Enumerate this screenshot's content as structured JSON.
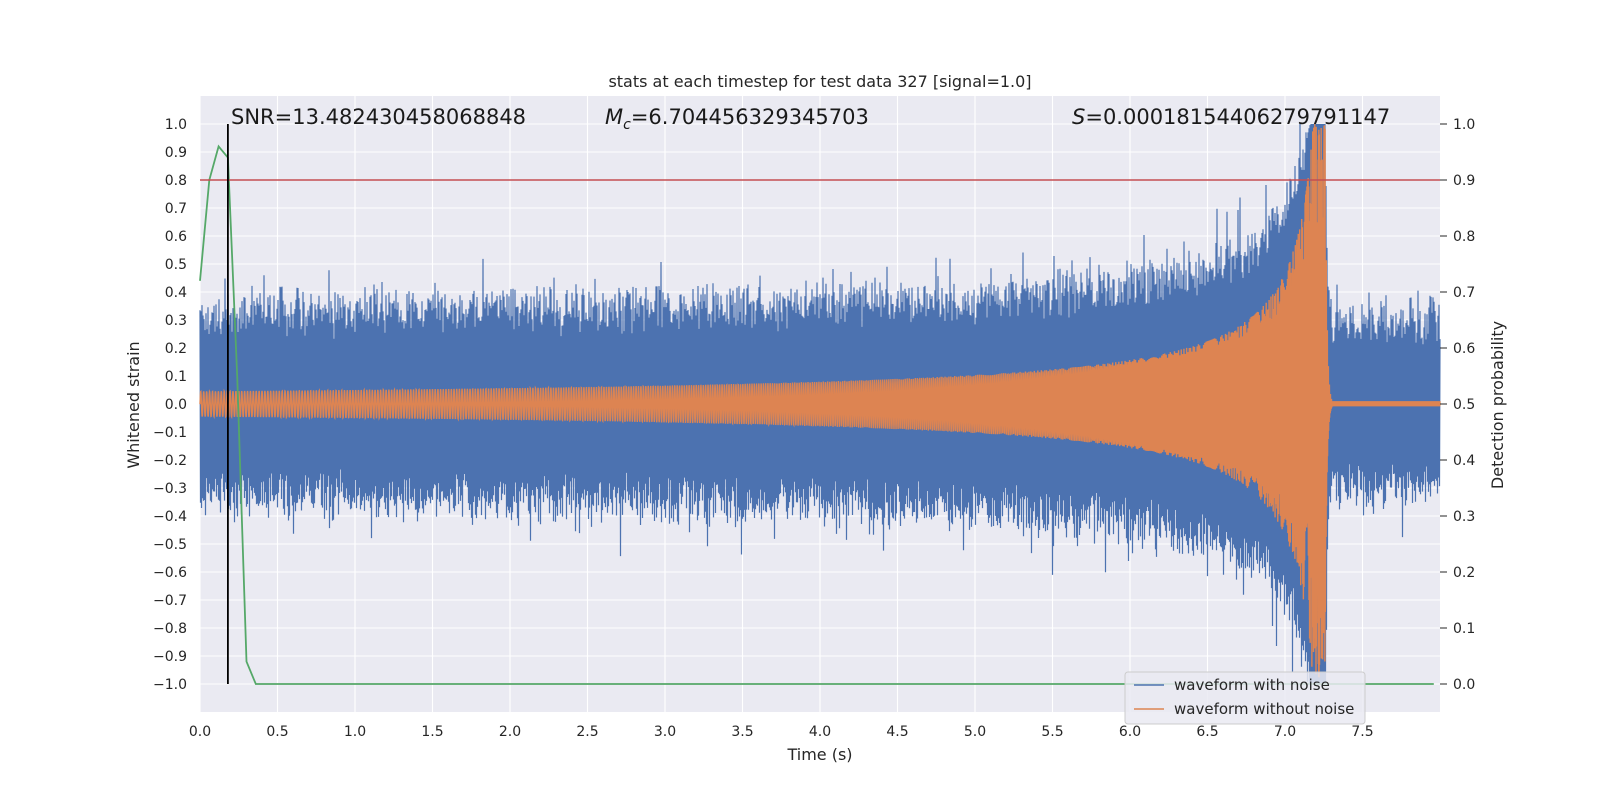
{
  "chart_data": {
    "type": "line",
    "title": "stats at each timestep for test data 327 [signal=1.0]",
    "xlabel": "Time (s)",
    "ylabel_left": "Whitened strain",
    "ylabel_right": "Detection probability",
    "xlim": [
      0.0,
      8.0
    ],
    "ylim_left": [
      -1.1,
      1.1
    ],
    "ylim_right": [
      -0.05,
      1.05
    ],
    "xticks": [
      "0.0",
      "0.5",
      "1.0",
      "1.5",
      "2.0",
      "2.5",
      "3.0",
      "3.5",
      "4.0",
      "4.5",
      "5.0",
      "5.5",
      "6.0",
      "6.5",
      "7.0",
      "7.5"
    ],
    "yticks_left": [
      "1.0",
      "0.9",
      "0.8",
      "0.7",
      "0.6",
      "0.5",
      "0.4",
      "0.3",
      "0.2",
      "0.1",
      "0.0",
      "−0.1",
      "−0.2",
      "−0.3",
      "−0.4",
      "−0.5",
      "−0.6",
      "−0.7",
      "−0.8",
      "−0.9",
      "−1.0"
    ],
    "yticks_right": [
      "1.0",
      "0.9",
      "0.8",
      "0.7",
      "0.6",
      "0.5",
      "0.4",
      "0.3",
      "0.2",
      "0.1",
      "0.0"
    ],
    "grid": true,
    "annotations": {
      "snr": "SNR=13.482430458068848",
      "mc": "M",
      "mc_sub": "c",
      "mc_value": "=6.704456329345703",
      "s": "S",
      "s_value": "=0.00018154406279791147"
    },
    "threshold_line": {
      "y_right": 0.9,
      "color": "#c44e52"
    },
    "detection_vline": {
      "x": 0.18,
      "color": "#000000"
    },
    "series": [
      {
        "name": "waveform with noise",
        "color": "#4c72b0",
        "axis": "left",
        "noise_amplitude": 0.33,
        "merger_time": 7.26,
        "description": "whitened noisy strain"
      },
      {
        "name": "waveform without noise",
        "color": "#dd8452",
        "axis": "left",
        "start_amplitude": 0.045,
        "peak_amplitude": 1.0,
        "merger_time": 7.26,
        "ringdown_offset": 0.01
      },
      {
        "name": "detection probability",
        "color": "#55a868",
        "axis": "right",
        "x": [
          0.0,
          0.06,
          0.12,
          0.18,
          0.24,
          0.3,
          0.36,
          7.96
        ],
        "y": [
          0.72,
          0.9,
          0.96,
          0.94,
          0.55,
          0.04,
          0.0,
          0.0
        ]
      }
    ],
    "legend": {
      "placement": "lower-right",
      "entries": [
        {
          "label": "waveform with noise",
          "color": "#4c72b0"
        },
        {
          "label": "waveform without noise",
          "color": "#dd8452"
        }
      ]
    }
  }
}
